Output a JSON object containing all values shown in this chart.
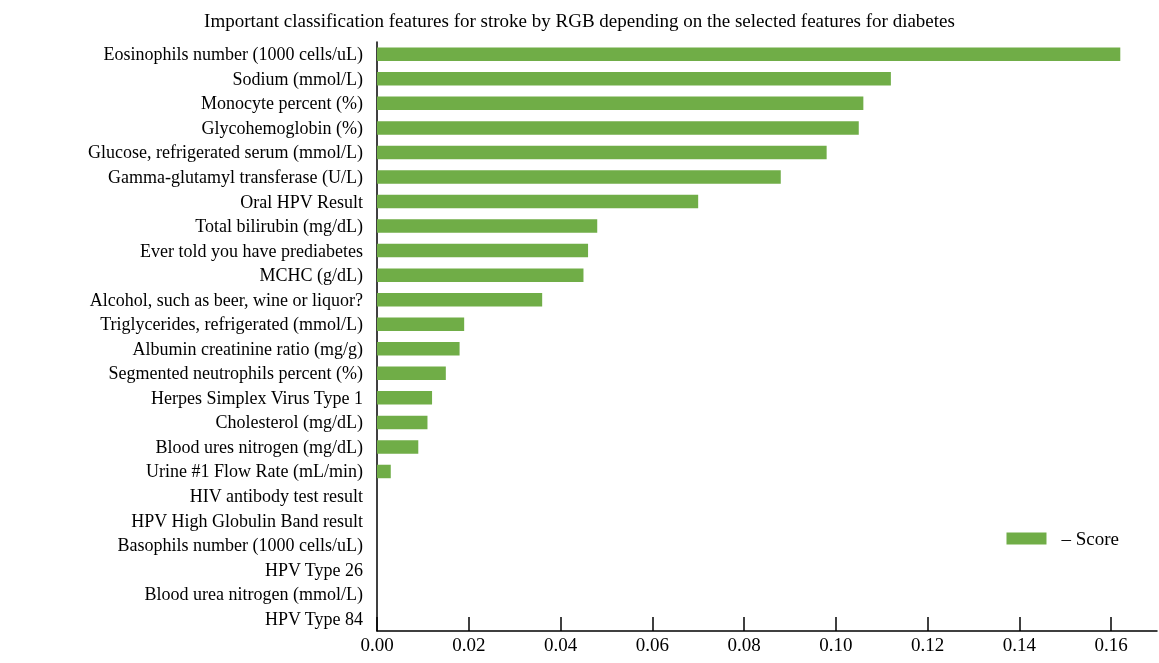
{
  "chart_data": {
    "type": "bar",
    "orientation": "horizontal",
    "title": "Important classification features for stroke by RGB depending on the selected features for diabetes",
    "categories": [
      "Eosinophils number (1000 cells/uL)",
      "Sodium (mmol/L)",
      "Monocyte percent (%)",
      "Glycohemoglobin (%)",
      "Glucose, refrigerated serum (mmol/L)",
      "Gamma-glutamyl transferase (U/L)",
      "Oral HPV Result",
      "Total bilirubin (mg/dL)",
      "Ever told you have prediabetes",
      "MCHC (g/dL)",
      "Alcohol, such as beer, wine or liquor?",
      "Triglycerides, refrigerated (mmol/L)",
      "Albumin creatinine ratio (mg/g)",
      "Segmented neutrophils percent (%)",
      "Herpes Simplex Virus Type 1",
      "Cholesterol (mg/dL)",
      "Blood ures nitrogen (mg/dL)",
      "Urine #1 Flow Rate (mL/min)",
      "HIV antibody test result",
      "HPV High Globulin Band result",
      "Basophils number (1000 cells/uL)",
      "HPV Type 26",
      "Blood urea nitrogen (mmol/L)",
      "HPV Type 84"
    ],
    "series": [
      {
        "name": "– Score",
        "color": "#70ad47",
        "values": [
          0.162,
          0.112,
          0.106,
          0.105,
          0.098,
          0.088,
          0.07,
          0.048,
          0.046,
          0.045,
          0.036,
          0.019,
          0.018,
          0.015,
          0.012,
          0.011,
          0.009,
          0.003,
          0,
          0,
          0,
          0,
          0,
          0
        ]
      }
    ],
    "xlim": [
      0,
      0.17
    ],
    "xticks": [
      {
        "value": 0,
        "label": "0.00"
      },
      {
        "value": 0.02,
        "label": "0.02"
      },
      {
        "value": 0.04,
        "label": "0.04"
      },
      {
        "value": 0.06,
        "label": "0.06"
      },
      {
        "value": 0.08,
        "label": "0.08"
      },
      {
        "value": 0.1,
        "label": "0.10"
      },
      {
        "value": 0.12,
        "label": "0.12"
      },
      {
        "value": 0.14,
        "label": "0.14"
      },
      {
        "value": 0.16,
        "label": "0.16"
      }
    ],
    "grid": false,
    "legend": "bottom right"
  }
}
